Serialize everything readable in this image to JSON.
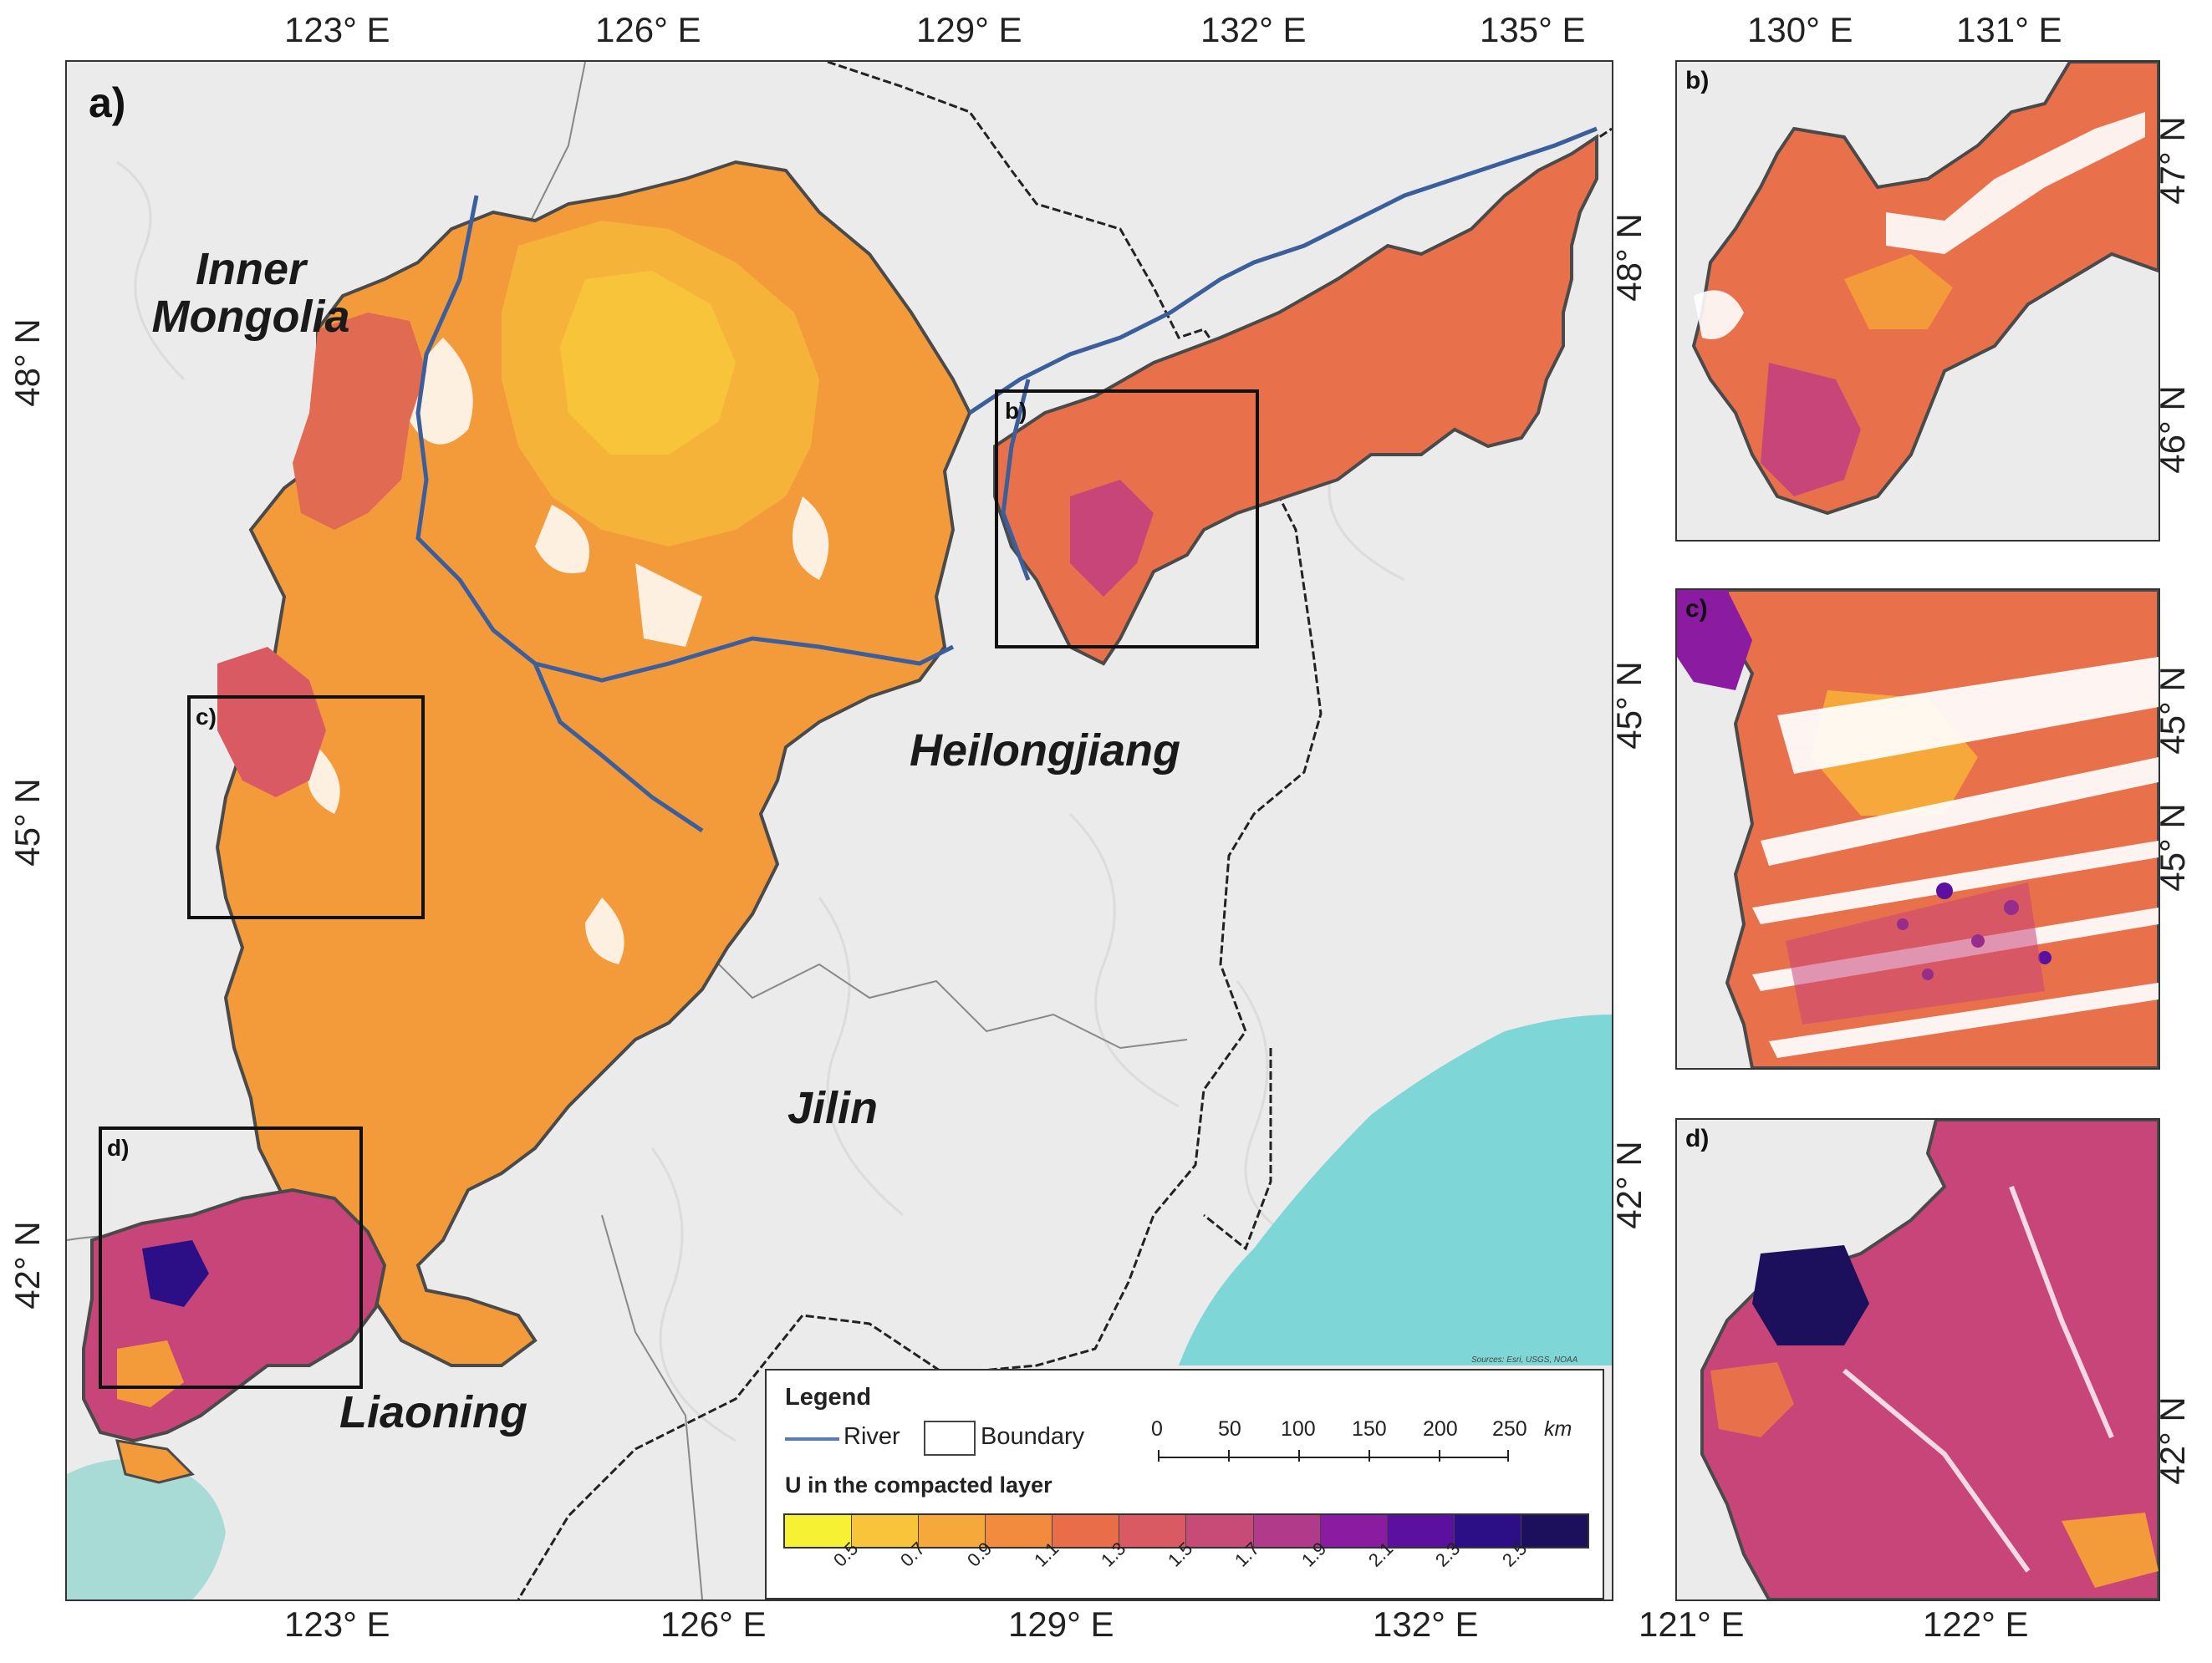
{
  "panels": {
    "a": {
      "label": "a)",
      "top_ticks": [
        "123° E",
        "126° E",
        "129° E",
        "132° E",
        "135° E"
      ],
      "bottom_ticks": [
        "123° E",
        "126° E",
        "129° E",
        "132° E"
      ],
      "left_ticks": [
        "48° N",
        "45° N",
        "42° N"
      ],
      "right_ticks": [
        "48° N",
        "45° N",
        "42° N"
      ],
      "inset_labels": [
        "b)",
        "c)",
        "d)"
      ],
      "regions": {
        "inner_mongolia": "Inner\nMongolia",
        "heilongjiang": "Heilongjiang",
        "jilin": "Jilin",
        "liaoning": "Liaoning"
      },
      "credit": "Sources: Esri, USGS, NOAA"
    },
    "b": {
      "label": "b)",
      "top_ticks": [
        "130° E",
        "131° E"
      ],
      "right_ticks": [
        "47° N",
        "46° N"
      ]
    },
    "c": {
      "label": "c)",
      "right_ticks": [
        "45° N",
        "45° N"
      ]
    },
    "d": {
      "label": "d)",
      "right_ticks": [
        "42° N"
      ],
      "bottom_ticks": [
        "121° E",
        "122° E"
      ]
    }
  },
  "legend": {
    "title": "Legend",
    "river_label": "River",
    "boundary_label": "Boundary",
    "u_title": "U in the compacted layer",
    "ramp_colors": [
      "#f6f233",
      "#f8c53a",
      "#f6a83a",
      "#f38b3e",
      "#ea6d4a",
      "#d95a62",
      "#c84b77",
      "#b23a8a",
      "#8b1ba0",
      "#5c10a0",
      "#2c0f86",
      "#1c0f5c"
    ],
    "ramp_ticks": [
      "0.5",
      "0.7",
      "0.9",
      "1.1",
      "1.3",
      "1.5",
      "1.7",
      "1.9",
      "2.1",
      "2.3",
      "2.5"
    ],
    "scale_numbers": [
      "0",
      "50",
      "100",
      "150",
      "200",
      "250"
    ],
    "scale_unit": "km"
  },
  "colors": {
    "terrain": "#ebebeb",
    "sea": "#7fd6d6",
    "river": "#3c5f9c",
    "boundary": "#4a4a4a",
    "field_main": "#f39a3a",
    "field_light": "#f6b33a",
    "field_magenta": "#c8457a",
    "field_dark": "#2c0f86"
  }
}
